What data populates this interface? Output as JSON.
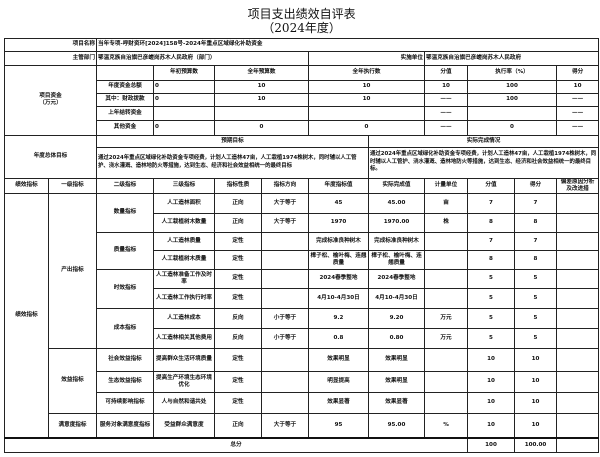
{
  "title": "项目支出绩效自评表",
  "subtitle": "（2024年度）",
  "project": {
    "name_label": "项目名称",
    "name": "当年专项-呼财资环[2024]158号-2024年重点区域绿化补助资金"
  },
  "dept": {
    "label": "主管部门",
    "value": "鄂温克族自治旗巴彦嵯岗苏木人民政府（部门）",
    "impl_label": "实施单位",
    "impl_value": "鄂温克族自治旗巴彦嵯岗苏木人民政府"
  },
  "funds": {
    "label": "项目资金\n（万元）",
    "headers": [
      "",
      "年初预算数",
      "全年预算数",
      "全年执行数",
      "分值",
      "执行率（%）",
      "得分"
    ],
    "rows": [
      [
        "年度资金总额",
        "0",
        "10",
        "10",
        "10",
        "100",
        "10"
      ],
      [
        "其中：财政拨款",
        "0",
        "10",
        "10",
        "——",
        "100",
        "——"
      ],
      [
        "上年结转资金",
        "",
        "",
        "",
        "——",
        "",
        "——"
      ],
      [
        "其他资金",
        "0",
        "0",
        "0",
        "——",
        "0",
        "——"
      ]
    ]
  },
  "goals": {
    "label": "年度总体目标",
    "expected_label": "预期目标",
    "actual_label": "实际完成情况",
    "expected": "通过2024年重点区域绿化补助资金专项经费，计划人工造林47亩，人工栽植1974株树木，同时辅以人工管护、浇水灌溉、造林地防火等措施，达到生态、经济和社会效益相统一的最终目标",
    "actual": "通过2024年重点区域绿化补助资金专项经费，计划人工造林47亩，人工栽植1974株树木，同时辅以人工管护、浇水灌溉、造林地防火等措施，达到生态、经济和社会效益相统一的最终目标。"
  },
  "indicators": {
    "headers": [
      "绩效指标",
      "一级指标",
      "二级指标",
      "三级指标",
      "指标性质",
      "指标方向",
      "年度指标值",
      "实际完成值",
      "计量单位",
      "分值",
      "得分",
      "偏差原因分析及改进措"
    ],
    "col1": "绩效指标",
    "level1": [
      "产出指标",
      "效益指标",
      "满意度指标"
    ],
    "level2": [
      "数量指标",
      "质量指标",
      "时效指标",
      "成本指标",
      "社会效益指标",
      "生态效益指标",
      "可持续影响指标",
      "服务对象满意度指标"
    ],
    "rows": [
      [
        "人工造林面积",
        "正向",
        "大于等于",
        "45",
        "45.00",
        "亩",
        "7",
        "7",
        ""
      ],
      [
        "人工栽植树木数量",
        "正向",
        "大于等于",
        "1970",
        "1970.00",
        "株",
        "8",
        "8",
        ""
      ],
      [
        "人工造林质量",
        "定性",
        "",
        "完成标准良种树木",
        "完成标准良种树木",
        "",
        "7",
        "7",
        ""
      ],
      [
        "人工栽植树木质量",
        "定性",
        "",
        "樟子松、榆叶梅、连翘质量",
        "樟子松、榆叶梅、连翘质量",
        "",
        "8",
        "8",
        ""
      ],
      [
        "人工造林准备工作及时率",
        "定性",
        "",
        "2024春季整地",
        "2024春季整地",
        "",
        "5",
        "5",
        ""
      ],
      [
        "人工造林工作执行时率",
        "定性",
        "",
        "4月10-4月30日",
        "4月10-4月30日",
        "",
        "5",
        "5",
        ""
      ],
      [
        "人工造林成本",
        "反向",
        "小于等于",
        "9.2",
        "9.20",
        "万元",
        "5",
        "5",
        ""
      ],
      [
        "人工造林相关其他费用",
        "反向",
        "小于等于",
        "0.8",
        "0.80",
        "万元",
        "5",
        "5",
        ""
      ],
      [
        "提高群众生活环境质量",
        "定性",
        "",
        "效果明显",
        "效果明显",
        "",
        "10",
        "10",
        ""
      ],
      [
        "提高生产环境生态环境优化",
        "定性",
        "",
        "明显提高",
        "效果明显",
        "",
        "10",
        "10",
        ""
      ],
      [
        "人与自然和谐共处",
        "定性",
        "",
        "效果显著",
        "效果显著",
        "",
        "10",
        "10",
        ""
      ],
      [
        "受益群众满意度",
        "正向",
        "大于等于",
        "95",
        "95.00",
        "%",
        "10",
        "10",
        ""
      ]
    ]
  },
  "total": {
    "label": "总分",
    "score": "100",
    "got": "100.00",
    "note": ""
  }
}
